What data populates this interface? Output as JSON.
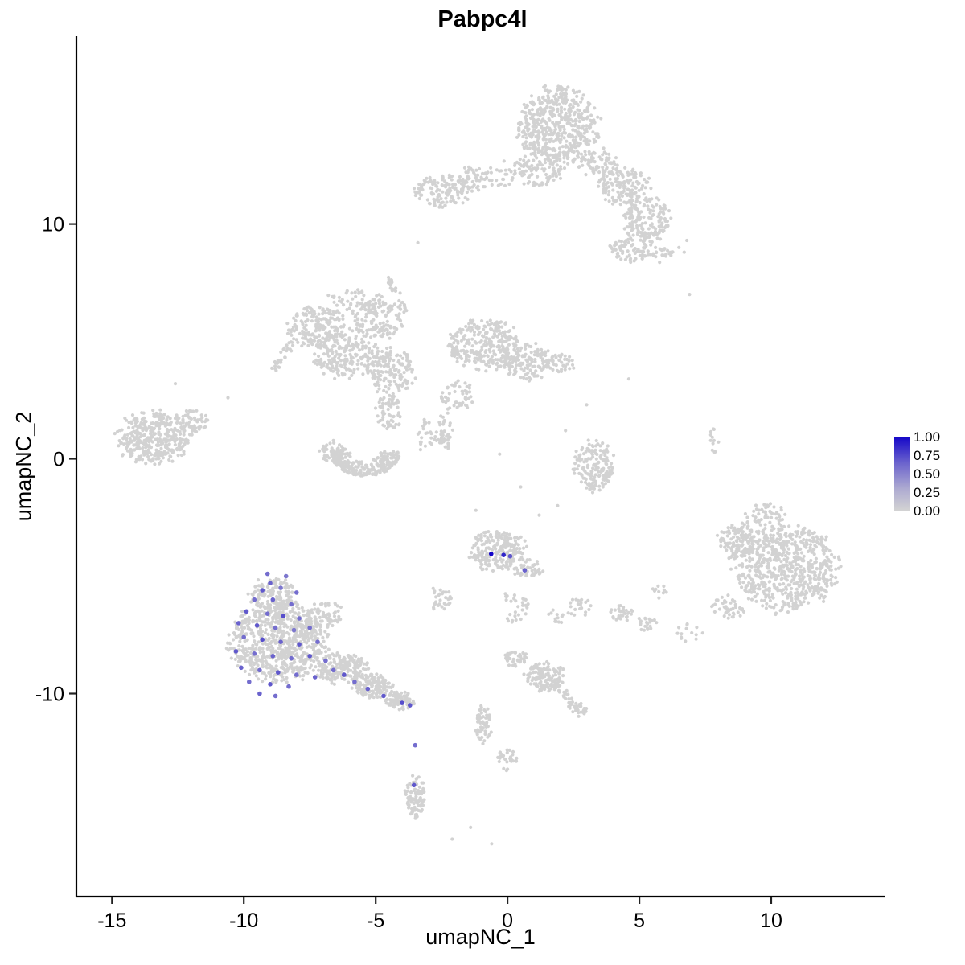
{
  "chart_data": {
    "type": "scatter",
    "title": "Pabpc4l",
    "xlabel": "umapNC_1",
    "ylabel": "umapNC_2",
    "xlim": [
      -16.35,
      14.3
    ],
    "ylim": [
      -18.65,
      18.0
    ],
    "x_ticks": [
      -15,
      -10,
      -5,
      0,
      5,
      10
    ],
    "y_ticks": [
      -10,
      0,
      10
    ],
    "grid": false,
    "legend": {
      "position": "right",
      "labels": [
        "1.00",
        "0.75",
        "0.50",
        "0.25",
        "0.00"
      ],
      "low_color": "#d3d3d3",
      "high_color": "#1406c8"
    },
    "base_color": "#d2d2d2",
    "point_radius": 2.1,
    "expressing_point_radius": 2.8,
    "clusters": [
      {
        "name": "top-main",
        "type": "blob",
        "cx": 1.9,
        "cy": 14.2,
        "rx": 1.5,
        "ry": 1.6,
        "n": 520
      },
      {
        "name": "top-main-lower",
        "type": "blob",
        "cx": 1.2,
        "cy": 12.4,
        "rx": 0.9,
        "ry": 0.8,
        "n": 110
      },
      {
        "name": "top-bridge",
        "type": "blob",
        "cx": 0.1,
        "cy": 12.1,
        "rx": 0.9,
        "ry": 0.55,
        "n": 40
      },
      {
        "name": "topright-1",
        "type": "blob",
        "cx": 3.4,
        "cy": 12.6,
        "rx": 0.8,
        "ry": 0.6,
        "n": 70
      },
      {
        "name": "topright-2",
        "type": "blob",
        "cx": 4.4,
        "cy": 11.6,
        "rx": 1.0,
        "ry": 0.8,
        "n": 150
      },
      {
        "name": "topright-3",
        "type": "blob",
        "cx": 5.3,
        "cy": 10.2,
        "rx": 0.9,
        "ry": 0.9,
        "n": 160
      },
      {
        "name": "topright-4",
        "type": "blob",
        "cx": 4.7,
        "cy": 8.9,
        "rx": 0.8,
        "ry": 0.55,
        "n": 70
      },
      {
        "name": "topright-5",
        "type": "blob",
        "cx": 5.8,
        "cy": 8.7,
        "rx": 0.45,
        "ry": 0.35,
        "n": 25
      },
      {
        "name": "topleft-1",
        "type": "blob",
        "cx": -2.5,
        "cy": 11.4,
        "rx": 1.0,
        "ry": 0.65,
        "n": 130
      },
      {
        "name": "topleft-2",
        "type": "blob",
        "cx": -1.3,
        "cy": 11.9,
        "rx": 0.6,
        "ry": 0.5,
        "n": 45
      },
      {
        "name": "midleft-1",
        "type": "blob",
        "cx": -7.2,
        "cy": 5.6,
        "rx": 1.1,
        "ry": 0.85,
        "n": 190
      },
      {
        "name": "midleft-2",
        "type": "blob",
        "cx": -6.1,
        "cy": 4.4,
        "rx": 1.2,
        "ry": 0.95,
        "n": 210
      },
      {
        "name": "midleft-3",
        "type": "blob",
        "cx": -4.9,
        "cy": 5.9,
        "rx": 1.0,
        "ry": 0.75,
        "n": 120
      },
      {
        "name": "midleft-4",
        "type": "blob",
        "cx": -4.4,
        "cy": 3.7,
        "rx": 0.85,
        "ry": 0.95,
        "n": 150
      },
      {
        "name": "midleft-top",
        "type": "blob",
        "cx": -5.7,
        "cy": 6.7,
        "rx": 1.2,
        "ry": 0.5,
        "n": 60
      },
      {
        "name": "midleft-edge",
        "type": "line",
        "x0": -8.1,
        "y0": 5.1,
        "x1": -8.8,
        "y1": 3.9,
        "w": 0.35,
        "n": 30
      },
      {
        "name": "midleft-wisp",
        "type": "line",
        "x0": -4.5,
        "y0": 7.7,
        "x1": -3.9,
        "y1": 6.3,
        "w": 0.25,
        "n": 30
      },
      {
        "name": "midleft-bridge",
        "type": "blob",
        "cx": -4.5,
        "cy": 2.0,
        "rx": 0.5,
        "ry": 0.8,
        "n": 70
      },
      {
        "name": "midcenter-1",
        "type": "blob",
        "cx": -0.9,
        "cy": 4.9,
        "rx": 1.3,
        "ry": 1.05,
        "n": 280
      },
      {
        "name": "midcenter-2",
        "type": "blob",
        "cx": 0.7,
        "cy": 4.2,
        "rx": 0.95,
        "ry": 0.8,
        "n": 150
      },
      {
        "name": "midcenter-tail",
        "type": "blob",
        "cx": 2.0,
        "cy": 4.1,
        "rx": 0.6,
        "ry": 0.4,
        "n": 40
      },
      {
        "name": "midcenter-low",
        "type": "blob",
        "cx": -1.9,
        "cy": 2.7,
        "rx": 0.6,
        "ry": 0.6,
        "n": 50
      },
      {
        "name": "midcenter-strip",
        "type": "blob",
        "cx": -2.4,
        "cy": 1.2,
        "rx": 0.3,
        "ry": 0.85,
        "n": 40
      },
      {
        "name": "farleft-main",
        "type": "blob",
        "cx": -13.4,
        "cy": 0.9,
        "rx": 1.4,
        "ry": 1.1,
        "n": 380
      },
      {
        "name": "farleft-fringe",
        "type": "blob",
        "cx": -11.9,
        "cy": 1.6,
        "rx": 0.6,
        "ry": 0.5,
        "n": 50
      },
      {
        "name": "cshape",
        "type": "arc",
        "cx": -5.4,
        "cy": 0.4,
        "r0": 0.55,
        "r1": 1.35,
        "a0": 3.25,
        "a1": 6.2,
        "sy": 0.85,
        "n": 240
      },
      {
        "name": "cshape-left",
        "type": "blob",
        "cx": -6.6,
        "cy": 0.3,
        "rx": 0.5,
        "ry": 0.5,
        "n": 50
      },
      {
        "name": "cshape-right",
        "type": "blob",
        "cx": -3.1,
        "cy": 1.0,
        "rx": 0.45,
        "ry": 0.6,
        "n": 25
      },
      {
        "name": "right-mid",
        "type": "blob",
        "cx": 3.3,
        "cy": -0.3,
        "rx": 0.75,
        "ry": 1.05,
        "n": 170
      },
      {
        "name": "centerlow-1",
        "type": "blob",
        "cx": -0.4,
        "cy": -3.9,
        "rx": 1.05,
        "ry": 0.85,
        "n": 230
      },
      {
        "name": "centerlow-2",
        "type": "blob",
        "cx": 0.8,
        "cy": -4.7,
        "rx": 0.55,
        "ry": 0.4,
        "n": 50
      },
      {
        "name": "centerlow-sparse",
        "type": "blob",
        "cx": 0.3,
        "cy": -6.3,
        "rx": 0.5,
        "ry": 0.7,
        "n": 30
      },
      {
        "name": "centerlow-left",
        "type": "blob",
        "cx": -2.6,
        "cy": -6.0,
        "rx": 0.55,
        "ry": 0.5,
        "n": 30
      },
      {
        "name": "bigright-main",
        "type": "blob",
        "cx": 10.5,
        "cy": -4.6,
        "rx": 2.0,
        "ry": 1.8,
        "n": 720
      },
      {
        "name": "bigright-upperleft",
        "type": "blob",
        "cx": 8.7,
        "cy": -3.4,
        "rx": 0.7,
        "ry": 0.8,
        "n": 90
      },
      {
        "name": "bigright-top",
        "type": "blob",
        "cx": 9.8,
        "cy": -2.4,
        "rx": 0.8,
        "ry": 0.5,
        "n": 50
      },
      {
        "name": "bigright-lowerleft",
        "type": "blob",
        "cx": 8.4,
        "cy": -6.3,
        "rx": 0.6,
        "ry": 0.5,
        "n": 40
      },
      {
        "name": "bigright-stray1",
        "type": "blob",
        "cx": 6.9,
        "cy": -7.4,
        "rx": 0.5,
        "ry": 0.4,
        "n": 14
      },
      {
        "name": "bigright-stray2",
        "type": "blob",
        "cx": 5.9,
        "cy": -5.7,
        "rx": 0.5,
        "ry": 0.4,
        "n": 10
      },
      {
        "name": "lowerleft-main",
        "type": "blob",
        "cx": -8.7,
        "cy": -7.8,
        "rx": 1.8,
        "ry": 1.6,
        "n": 720
      },
      {
        "name": "lowerleft-neck",
        "type": "blob",
        "cx": -8.9,
        "cy": -5.8,
        "rx": 0.85,
        "ry": 0.7,
        "n": 150
      },
      {
        "name": "lowerleft-tail1",
        "type": "blob",
        "cx": -6.3,
        "cy": -8.9,
        "rx": 1.0,
        "ry": 0.65,
        "n": 190
      },
      {
        "name": "lowerleft-tail2",
        "type": "blob",
        "cx": -5.1,
        "cy": -9.7,
        "rx": 0.75,
        "ry": 0.5,
        "n": 140
      },
      {
        "name": "lowerleft-tail3",
        "type": "blob",
        "cx": -4.1,
        "cy": -10.3,
        "rx": 0.55,
        "ry": 0.4,
        "n": 80
      },
      {
        "name": "lowerleft-upperright",
        "type": "blob",
        "cx": -6.9,
        "cy": -6.6,
        "rx": 0.7,
        "ry": 0.6,
        "n": 60
      },
      {
        "name": "bottommid-1",
        "type": "blob",
        "cx": 1.4,
        "cy": -9.3,
        "rx": 0.75,
        "ry": 0.6,
        "n": 100
      },
      {
        "name": "bottommid-2",
        "type": "blob",
        "cx": 0.3,
        "cy": -8.5,
        "rx": 0.45,
        "ry": 0.35,
        "n": 40
      },
      {
        "name": "bottommid-streak",
        "type": "line",
        "x0": 0.9,
        "y0": -8.7,
        "x1": 2.5,
        "y1": -10.4,
        "w": 0.3,
        "n": 60
      },
      {
        "name": "bottommid-3",
        "type": "blob",
        "cx": 2.6,
        "cy": -10.7,
        "rx": 0.4,
        "ry": 0.35,
        "n": 25
      },
      {
        "name": "bottommid-wisp",
        "type": "blob",
        "cx": -0.9,
        "cy": -11.3,
        "rx": 0.28,
        "ry": 0.85,
        "n": 55
      },
      {
        "name": "bottommid-4",
        "type": "blob",
        "cx": 0.0,
        "cy": -12.8,
        "rx": 0.45,
        "ry": 0.45,
        "n": 30
      },
      {
        "name": "bottom-strip",
        "type": "blob",
        "cx": -3.5,
        "cy": -14.4,
        "rx": 0.38,
        "ry": 0.9,
        "n": 90
      },
      {
        "name": "right-wisp",
        "type": "blob",
        "cx": 7.85,
        "cy": 0.8,
        "rx": 0.16,
        "ry": 0.55,
        "n": 12
      },
      {
        "name": "small-mid-1",
        "type": "blob",
        "cx": 4.3,
        "cy": -6.6,
        "rx": 0.45,
        "ry": 0.35,
        "n": 30
      },
      {
        "name": "small-mid-2",
        "type": "blob",
        "cx": 5.3,
        "cy": -7.0,
        "rx": 0.35,
        "ry": 0.3,
        "n": 20
      },
      {
        "name": "small-mid-3",
        "type": "blob",
        "cx": 2.7,
        "cy": -6.3,
        "rx": 0.55,
        "ry": 0.45,
        "n": 22
      },
      {
        "name": "small-mid-4",
        "type": "blob",
        "cx": 1.8,
        "cy": -6.7,
        "rx": 0.4,
        "ry": 0.3,
        "n": 12
      }
    ],
    "singles": [
      [
        -10.6,
        2.6
      ],
      [
        6.8,
        9.3
      ],
      [
        6.5,
        9.0
      ],
      [
        6.9,
        7.0
      ],
      [
        6.7,
        8.8
      ],
      [
        1.2,
        -2.4
      ],
      [
        -3.4,
        9.2
      ],
      [
        -2.1,
        -16.2
      ],
      [
        -0.6,
        -16.4
      ],
      [
        -1.4,
        -15.7
      ],
      [
        3.0,
        2.3
      ],
      [
        2.2,
        1.2
      ],
      [
        -0.3,
        0.2
      ],
      [
        0.5,
        -1.2
      ],
      [
        1.9,
        -2.0
      ],
      [
        -1.2,
        -2.2
      ],
      [
        4.6,
        3.4
      ],
      [
        -12.6,
        3.2
      ]
    ],
    "expressing_cells": [
      [
        -9.1,
        -4.9,
        0.5
      ],
      [
        -8.4,
        -5.0,
        0.45
      ],
      [
        -9.0,
        -5.3,
        0.55
      ],
      [
        -8.6,
        -5.5,
        0.45
      ],
      [
        -9.3,
        -5.6,
        0.6
      ],
      [
        -8.0,
        -5.7,
        0.5
      ],
      [
        -9.6,
        -6.0,
        0.5
      ],
      [
        -8.9,
        -6.0,
        0.55
      ],
      [
        -8.2,
        -6.2,
        0.5
      ],
      [
        -9.9,
        -6.5,
        0.6
      ],
      [
        -9.1,
        -6.6,
        0.5
      ],
      [
        -8.5,
        -6.7,
        0.65
      ],
      [
        -7.9,
        -6.8,
        0.5
      ],
      [
        -10.2,
        -7.0,
        0.55
      ],
      [
        -9.5,
        -7.1,
        0.6
      ],
      [
        -8.8,
        -7.2,
        0.5
      ],
      [
        -8.1,
        -7.3,
        0.45
      ],
      [
        -7.5,
        -7.2,
        0.5
      ],
      [
        -10.0,
        -7.6,
        0.5
      ],
      [
        -9.3,
        -7.7,
        0.65
      ],
      [
        -8.6,
        -7.8,
        0.55
      ],
      [
        -7.9,
        -7.9,
        0.6
      ],
      [
        -7.2,
        -7.8,
        0.5
      ],
      [
        -10.3,
        -8.2,
        0.6
      ],
      [
        -9.6,
        -8.3,
        0.5
      ],
      [
        -8.9,
        -8.4,
        0.55
      ],
      [
        -8.2,
        -8.5,
        0.5
      ],
      [
        -7.5,
        -8.4,
        0.6
      ],
      [
        -6.9,
        -8.6,
        0.5
      ],
      [
        -10.1,
        -8.9,
        0.55
      ],
      [
        -9.4,
        -9.0,
        0.5
      ],
      [
        -8.7,
        -9.1,
        0.6
      ],
      [
        -8.0,
        -9.2,
        0.5
      ],
      [
        -7.3,
        -9.3,
        0.55
      ],
      [
        -9.8,
        -9.5,
        0.5
      ],
      [
        -9.0,
        -9.6,
        0.6
      ],
      [
        -8.3,
        -9.7,
        0.5
      ],
      [
        -9.4,
        -10.0,
        0.55
      ],
      [
        -8.8,
        -10.1,
        0.5
      ],
      [
        -6.6,
        -9.0,
        0.5
      ],
      [
        -6.2,
        -9.2,
        0.6
      ],
      [
        -5.8,
        -9.5,
        0.5
      ],
      [
        -5.3,
        -9.8,
        0.55
      ],
      [
        -4.7,
        -10.1,
        0.6
      ],
      [
        -4.0,
        -10.4,
        0.65
      ],
      [
        -3.7,
        -10.5,
        0.6
      ],
      [
        -3.5,
        -12.2,
        0.5
      ],
      [
        -3.55,
        -13.9,
        0.6
      ],
      [
        -0.62,
        -4.05,
        1.0
      ],
      [
        -0.15,
        -4.1,
        0.85
      ],
      [
        0.1,
        -4.15,
        0.6
      ],
      [
        0.65,
        -4.75,
        0.55
      ]
    ]
  }
}
